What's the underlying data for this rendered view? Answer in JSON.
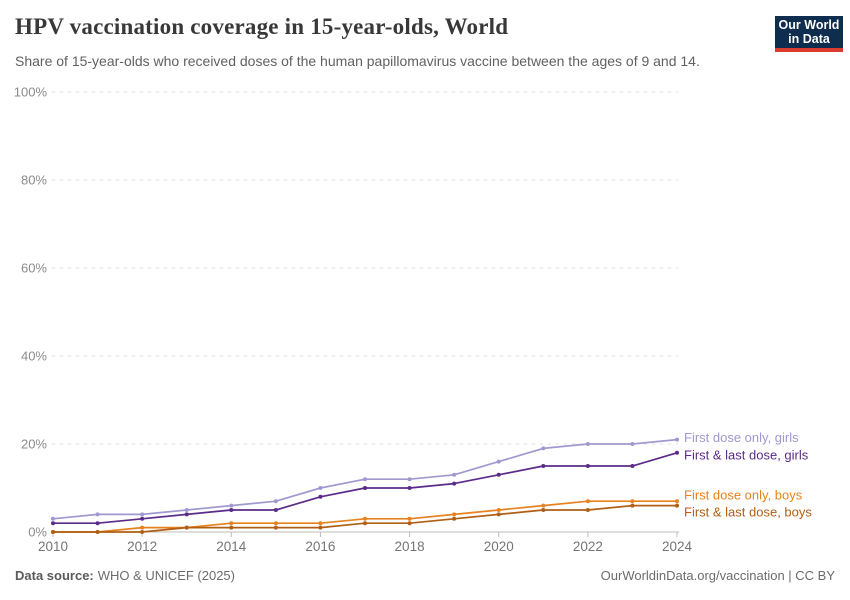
{
  "header": {
    "title": "HPV vaccination coverage in 15-year-olds, World",
    "subtitle": "Share of 15-year-olds who received doses of the human papillomavirus vaccine between the ages of 9 and 14.",
    "logo": {
      "line1": "Our World",
      "line2": "in Data",
      "bg": "#0f2d4e",
      "stripe": "#dc3b30"
    }
  },
  "chart_data": {
    "type": "line",
    "title": "HPV vaccination coverage in 15-year-olds, World",
    "subtitle": "Share of 15-year-olds who received doses of the human papillomavirus vaccine between the ages of 9 and 14.",
    "x": [
      2010,
      2011,
      2012,
      2013,
      2014,
      2015,
      2016,
      2017,
      2018,
      2019,
      2020,
      2021,
      2022,
      2023,
      2024
    ],
    "series": [
      {
        "name": "First dose only, girls",
        "color": "#a099cf",
        "values": [
          3,
          4,
          4,
          5,
          6,
          7,
          10,
          12,
          12,
          13,
          16,
          19,
          20,
          20,
          21
        ]
      },
      {
        "name": "First & last dose, girls",
        "color": "#5b2b8a",
        "values": [
          2,
          2,
          3,
          4,
          5,
          5,
          8,
          10,
          10,
          11,
          13,
          15,
          15,
          15,
          18
        ]
      },
      {
        "name": "First dose only, boys",
        "color": "#e6821f",
        "values": [
          0,
          0,
          1,
          1,
          2,
          2,
          2,
          3,
          3,
          4,
          5,
          6,
          7,
          7,
          7
        ]
      },
      {
        "name": "First & last dose, boys",
        "color": "#b05f15",
        "values": [
          0,
          0,
          0,
          1,
          1,
          1,
          1,
          2,
          2,
          3,
          4,
          5,
          5,
          6,
          6
        ]
      }
    ],
    "ylim": [
      0,
      100
    ],
    "yticks": [
      0,
      20,
      40,
      60,
      80,
      100
    ],
    "ytick_suffix": "%",
    "xticks": [
      2010,
      2012,
      2014,
      2016,
      2018,
      2020,
      2022,
      2024
    ],
    "grid": "horizontal-dashed",
    "legend_position": "right-of-line-ends"
  },
  "footer": {
    "source_label": "Data source:",
    "source_value": "WHO & UNICEF (2025)",
    "right": "OurWorldinData.org/vaccination | CC BY"
  }
}
